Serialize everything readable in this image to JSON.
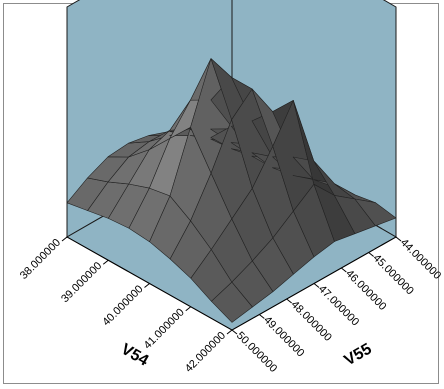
{
  "chart_data": {
    "type": "surface3d",
    "title": "",
    "colors": {
      "wall": "#8fb4c4",
      "surface": "#5b5b5b",
      "mesh": "#222222",
      "frame": "#8c8c8c"
    },
    "x_axis": {
      "label": "V54",
      "range": [
        38.0,
        42.0
      ],
      "ticks": [
        "38.000000",
        "39.000000",
        "40.000000",
        "41.000000",
        "42.000000"
      ]
    },
    "y_axis": {
      "label": "V55",
      "range": [
        44.0,
        50.0
      ],
      "ticks": [
        "44.000000",
        "45.000000",
        "46.000000",
        "47.000000",
        "48.000000",
        "49.000000",
        "50.000000"
      ]
    },
    "surface": {
      "x": [
        38.0,
        38.5,
        39.0,
        39.5,
        40.0,
        40.5,
        41.0,
        41.5,
        42.0
      ],
      "y": [
        44.0,
        44.75,
        45.5,
        46.25,
        47.0,
        47.75,
        48.5,
        49.25,
        50.0
      ],
      "z": [
        [
          0.08,
          0.14,
          0.2,
          0.25,
          0.29,
          0.31,
          0.3,
          0.25,
          0.18
        ],
        [
          0.06,
          0.13,
          0.21,
          0.29,
          0.35,
          0.38,
          0.36,
          0.29,
          0.2
        ],
        [
          0.05,
          0.12,
          0.22,
          0.34,
          0.45,
          0.5,
          0.46,
          0.34,
          0.22
        ],
        [
          0.05,
          0.12,
          0.26,
          0.46,
          0.66,
          0.72,
          0.58,
          0.38,
          0.23
        ],
        [
          0.06,
          0.14,
          0.3,
          0.55,
          0.84,
          1.0,
          0.7,
          0.4,
          0.22
        ],
        [
          0.08,
          0.18,
          0.36,
          0.66,
          0.84,
          0.74,
          0.52,
          0.33,
          0.19
        ],
        [
          0.1,
          0.22,
          0.4,
          0.78,
          0.6,
          0.44,
          0.34,
          0.24,
          0.15
        ],
        [
          0.12,
          0.2,
          0.28,
          0.4,
          0.32,
          0.24,
          0.18,
          0.13,
          0.09
        ],
        [
          0.1,
          0.12,
          0.14,
          0.16,
          0.14,
          0.11,
          0.08,
          0.06,
          0.04
        ]
      ]
    }
  }
}
